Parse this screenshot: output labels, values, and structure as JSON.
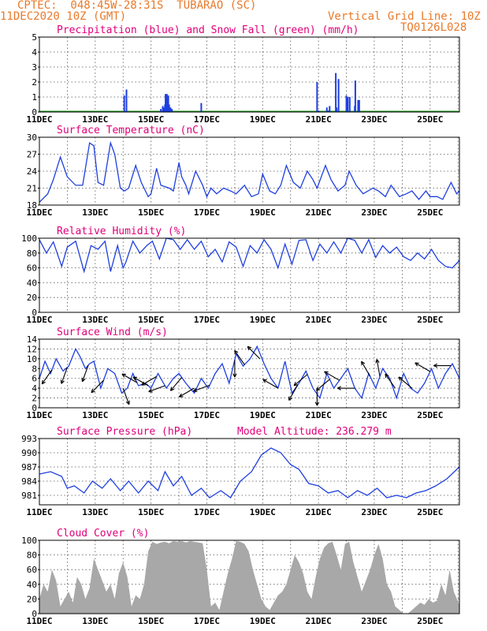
{
  "header": {
    "station": "CPTEC:  048:45W-28:31S  TUBARAO (SC)",
    "run": "11DEC2020 10Z (GMT)",
    "vgrid": "Vertical Grid Line: 10Z",
    "code": "TQ0126L028"
  },
  "colors": {
    "header": "#e87a2c",
    "title": "#e0007a",
    "line": "#1f3fe0",
    "snow": "#1a9a1a",
    "cloud": "#a8a8a8",
    "arrow": "#000000"
  },
  "x_axis": {
    "labels": [
      "11DEC",
      "13DEC",
      "15DEC",
      "17DEC",
      "19DEC",
      "21DEC",
      "23DEC",
      "25DEC"
    ],
    "domain_days": [
      0,
      15.05
    ]
  },
  "chart_data": [
    {
      "type": "bar",
      "title": "Precipitation (blue) and Snow Fall (green) (mm/h)",
      "ylim": [
        0,
        5
      ],
      "yticks": [
        0,
        1,
        2,
        3,
        4,
        5
      ],
      "series": [
        {
          "name": "precipitation",
          "x": [
            3.04,
            3.12,
            4.35,
            4.42,
            4.45,
            4.5,
            4.52,
            4.55,
            4.57,
            4.6,
            4.62,
            4.65,
            4.7,
            4.75,
            5.8,
            9.95,
            10.0,
            10.3,
            10.35,
            10.4,
            10.62,
            10.65,
            10.72,
            11.0,
            11.05,
            11.12,
            11.3,
            11.32,
            11.42,
            11.46
          ],
          "values": [
            1.1,
            1.5,
            0.2,
            0.4,
            0.3,
            0.5,
            1.2,
            0.3,
            1.2,
            0.8,
            1.1,
            0.5,
            0.3,
            0.2,
            0.6,
            2.0,
            0.1,
            0.3,
            0.1,
            0.4,
            2.6,
            0.3,
            2.2,
            1.1,
            1.0,
            1.0,
            0.4,
            2.1,
            0.8,
            0.8
          ]
        },
        {
          "name": "snow",
          "x": [],
          "values": []
        }
      ]
    },
    {
      "type": "line",
      "title": "Surface Temperature (nC)",
      "ylim": [
        18,
        30
      ],
      "yticks": [
        18,
        21,
        24,
        27,
        30
      ],
      "x": [
        0.0,
        0.3,
        0.5,
        0.75,
        1.0,
        1.3,
        1.55,
        1.8,
        1.95,
        2.1,
        2.3,
        2.55,
        2.7,
        2.9,
        3.05,
        3.2,
        3.45,
        3.65,
        3.9,
        4.0,
        4.2,
        4.35,
        4.65,
        4.8,
        5.0,
        5.1,
        5.25,
        5.35,
        5.6,
        5.85,
        6.0,
        6.15,
        6.35,
        6.6,
        6.85,
        7.05,
        7.35,
        7.6,
        7.85,
        8.0,
        8.25,
        8.45,
        8.65,
        8.85,
        9.1,
        9.35,
        9.6,
        9.8,
        9.95,
        10.25,
        10.45,
        10.7,
        10.95,
        11.1,
        11.35,
        11.6,
        11.95,
        12.15,
        12.4,
        12.6,
        12.9,
        13.15,
        13.35,
        13.6,
        13.85,
        14.0,
        14.25,
        14.45,
        14.75,
        14.95,
        15.05
      ],
      "values": [
        18.5,
        20.0,
        22.5,
        26.5,
        23.0,
        21.5,
        21.5,
        29.0,
        28.5,
        22.0,
        21.5,
        29.0,
        27.0,
        21.0,
        20.5,
        21.0,
        25.0,
        22.0,
        19.5,
        20.0,
        24.5,
        21.5,
        21.0,
        20.5,
        25.5,
        23.0,
        21.5,
        20.0,
        24.0,
        21.5,
        19.5,
        21.0,
        20.0,
        21.0,
        20.5,
        20.0,
        21.5,
        19.5,
        20.0,
        23.5,
        20.5,
        20.0,
        21.5,
        25.0,
        22.0,
        21.0,
        24.0,
        22.5,
        21.0,
        25.0,
        22.5,
        20.5,
        21.5,
        24.0,
        21.5,
        20.0,
        21.0,
        20.5,
        19.5,
        21.5,
        19.5,
        20.0,
        20.5,
        19.0,
        20.5,
        19.5,
        19.5,
        19.0,
        22.0,
        20.0,
        20.5
      ]
    },
    {
      "type": "line",
      "title": "Relative Humidity (%)",
      "ylim": [
        0,
        100
      ],
      "yticks": [
        0,
        20,
        40,
        60,
        80,
        100
      ],
      "x": [
        0.0,
        0.25,
        0.5,
        0.8,
        1.0,
        1.3,
        1.6,
        1.85,
        2.1,
        2.35,
        2.55,
        2.8,
        3.0,
        3.1,
        3.35,
        3.6,
        3.85,
        4.05,
        4.3,
        4.55,
        4.8,
        5.05,
        5.3,
        5.55,
        5.8,
        6.05,
        6.3,
        6.55,
        6.8,
        7.05,
        7.3,
        7.55,
        7.8,
        8.05,
        8.3,
        8.55,
        8.8,
        9.05,
        9.3,
        9.55,
        9.8,
        10.05,
        10.3,
        10.55,
        10.8,
        11.05,
        11.3,
        11.55,
        11.8,
        12.05,
        12.3,
        12.55,
        12.8,
        13.05,
        13.3,
        13.55,
        13.8,
        14.05,
        14.3,
        14.55,
        14.8,
        15.05
      ],
      "values": [
        98,
        80,
        95,
        62,
        88,
        96,
        55,
        90,
        85,
        96,
        55,
        90,
        60,
        68,
        96,
        80,
        90,
        96,
        72,
        100,
        98,
        85,
        98,
        85,
        96,
        75,
        85,
        68,
        95,
        88,
        62,
        90,
        80,
        98,
        85,
        60,
        92,
        65,
        97,
        98,
        70,
        92,
        80,
        95,
        80,
        100,
        97,
        80,
        98,
        74,
        90,
        80,
        88,
        75,
        70,
        80,
        72,
        85,
        70,
        62,
        60,
        70
      ]
    },
    {
      "type": "line",
      "title": "Surface Wind (m/s)",
      "ylim": [
        0,
        14
      ],
      "yticks": [
        0,
        2,
        4,
        6,
        8,
        10,
        12,
        14
      ],
      "x": [
        0.0,
        0.2,
        0.4,
        0.6,
        0.85,
        1.05,
        1.3,
        1.45,
        1.65,
        1.8,
        1.95,
        2.2,
        2.45,
        2.7,
        2.95,
        3.15,
        3.35,
        3.55,
        3.8,
        4.0,
        4.25,
        4.55,
        4.8,
        5.0,
        5.25,
        5.55,
        5.8,
        6.05,
        6.3,
        6.55,
        6.8,
        7.05,
        7.3,
        7.55,
        7.8,
        8.05,
        8.3,
        8.55,
        8.8,
        9.05,
        9.3,
        9.55,
        9.8,
        10.05,
        10.3,
        10.55,
        10.8,
        11.05,
        11.3,
        11.55,
        11.8,
        12.05,
        12.3,
        12.55,
        12.8,
        13.05,
        13.3,
        13.55,
        13.8,
        14.05,
        14.3,
        14.55,
        14.8,
        15.05
      ],
      "values": [
        6,
        9.5,
        7,
        10,
        7.5,
        8.5,
        12,
        10.5,
        8,
        9,
        9.5,
        4,
        8,
        7,
        3,
        4,
        7,
        4.5,
        5,
        4,
        7,
        4,
        6,
        7,
        5,
        3,
        6,
        4,
        7,
        9,
        5,
        11,
        8.5,
        10,
        12.5,
        9,
        6,
        4,
        9.5,
        3,
        5,
        7.5,
        4,
        2,
        7,
        4,
        6,
        8,
        4,
        2,
        7,
        4,
        8,
        6,
        2,
        7,
        4,
        3,
        5,
        8,
        4,
        7,
        9,
        6
      ]
    },
    {
      "type": "line",
      "title": "Surface Pressure (hPa)",
      "annotation": "Model Altitude: 236.279 m",
      "ylim": [
        979,
        993
      ],
      "yticks": [
        981,
        984,
        987,
        990,
        993
      ],
      "x": [
        0.0,
        0.4,
        0.8,
        1.0,
        1.25,
        1.6,
        1.9,
        2.25,
        2.55,
        2.9,
        3.2,
        3.55,
        3.9,
        4.25,
        4.5,
        4.8,
        5.1,
        5.45,
        5.8,
        6.1,
        6.5,
        6.85,
        7.2,
        7.6,
        7.95,
        8.3,
        8.65,
        9.0,
        9.3,
        9.65,
        10.0,
        10.35,
        10.7,
        11.05,
        11.4,
        11.75,
        12.1,
        12.45,
        12.8,
        13.15,
        13.5,
        13.85,
        14.2,
        14.6,
        15.05
      ],
      "values": [
        985.5,
        986,
        985,
        982.5,
        983,
        981.5,
        984,
        982.5,
        984.5,
        982,
        984,
        981.5,
        984,
        982,
        986,
        983,
        985,
        981,
        982.5,
        980.5,
        982,
        980.5,
        984,
        986,
        989.5,
        991,
        990,
        987.5,
        986.5,
        983.5,
        983,
        981.5,
        982,
        980.5,
        982,
        981,
        982.5,
        980.5,
        981,
        980.5,
        981.5,
        982,
        983,
        984.5,
        987
      ]
    },
    {
      "type": "area",
      "title": "Cloud Cover (%)",
      "ylim": [
        0,
        100
      ],
      "yticks": [
        0,
        20,
        40,
        60,
        80,
        100
      ],
      "x": [
        0.0,
        0.15,
        0.3,
        0.45,
        0.6,
        0.75,
        0.9,
        1.05,
        1.2,
        1.35,
        1.5,
        1.65,
        1.8,
        1.95,
        2.1,
        2.25,
        2.4,
        2.55,
        2.7,
        2.85,
        3.0,
        3.15,
        3.3,
        3.45,
        3.6,
        3.75,
        3.9,
        4.05,
        4.2,
        4.35,
        4.5,
        4.65,
        4.8,
        4.95,
        5.1,
        5.25,
        5.4,
        5.55,
        5.7,
        5.85,
        6.0,
        6.15,
        6.3,
        6.45,
        6.6,
        6.75,
        6.9,
        7.05,
        7.2,
        7.35,
        7.5,
        7.65,
        7.8,
        7.95,
        8.1,
        8.25,
        8.4,
        8.55,
        8.7,
        8.85,
        9.0,
        9.15,
        9.3,
        9.45,
        9.6,
        9.75,
        9.9,
        10.05,
        10.2,
        10.35,
        10.5,
        10.65,
        10.8,
        10.95,
        11.1,
        11.25,
        11.4,
        11.55,
        11.7,
        11.85,
        12.0,
        12.15,
        12.3,
        12.45,
        12.6,
        12.75,
        12.9,
        13.05,
        13.2,
        13.35,
        13.5,
        13.65,
        13.8,
        13.95,
        14.1,
        14.25,
        14.4,
        14.55,
        14.7,
        14.85,
        15.05
      ],
      "values": [
        20,
        40,
        30,
        60,
        45,
        10,
        20,
        30,
        15,
        50,
        40,
        20,
        35,
        75,
        60,
        45,
        30,
        40,
        20,
        55,
        70,
        50,
        10,
        25,
        20,
        40,
        85,
        98,
        95,
        97,
        98,
        96,
        99,
        98,
        99,
        97,
        99,
        98,
        97,
        96,
        60,
        10,
        15,
        5,
        30,
        55,
        75,
        99,
        98,
        95,
        85,
        60,
        40,
        20,
        10,
        5,
        15,
        25,
        30,
        40,
        60,
        80,
        70,
        55,
        30,
        20,
        50,
        75,
        90,
        96,
        98,
        80,
        60,
        95,
        98,
        70,
        50,
        30,
        45,
        60,
        80,
        95,
        75,
        40,
        30,
        10,
        5,
        0,
        0,
        5,
        10,
        15,
        12,
        20,
        15,
        18,
        40,
        25,
        60,
        30,
        12
      ]
    }
  ],
  "wind_arrows": [
    {
      "t": 0.45,
      "dir": 215
    },
    {
      "t": 1.0,
      "dir": 200
    },
    {
      "t": 1.75,
      "dir": 200
    },
    {
      "t": 2.3,
      "dir": 225
    },
    {
      "t": 3.0,
      "dir": 160
    },
    {
      "t": 3.5,
      "dir": 300
    },
    {
      "t": 3.9,
      "dir": 300
    },
    {
      "t": 4.2,
      "dir": 240
    },
    {
      "t": 4.5,
      "dir": 250
    },
    {
      "t": 5.1,
      "dir": 220
    },
    {
      "t": 5.55,
      "dir": 240
    },
    {
      "t": 6.1,
      "dir": 250
    },
    {
      "t": 7.0,
      "dir": 180
    },
    {
      "t": 7.35,
      "dir": 325
    },
    {
      "t": 7.9,
      "dir": 315
    },
    {
      "t": 8.55,
      "dir": 300
    },
    {
      "t": 9.25,
      "dir": 210
    },
    {
      "t": 9.6,
      "dir": 230
    },
    {
      "t": 9.95,
      "dir": 180
    },
    {
      "t": 10.4,
      "dir": 230
    },
    {
      "t": 10.75,
      "dir": 300
    },
    {
      "t": 11.3,
      "dir": 270
    },
    {
      "t": 11.85,
      "dir": 330
    },
    {
      "t": 12.2,
      "dir": 350
    },
    {
      "t": 12.75,
      "dir": 325
    },
    {
      "t": 13.35,
      "dir": 310
    },
    {
      "t": 14.0,
      "dir": 300
    },
    {
      "t": 14.75,
      "dir": 270
    }
  ]
}
